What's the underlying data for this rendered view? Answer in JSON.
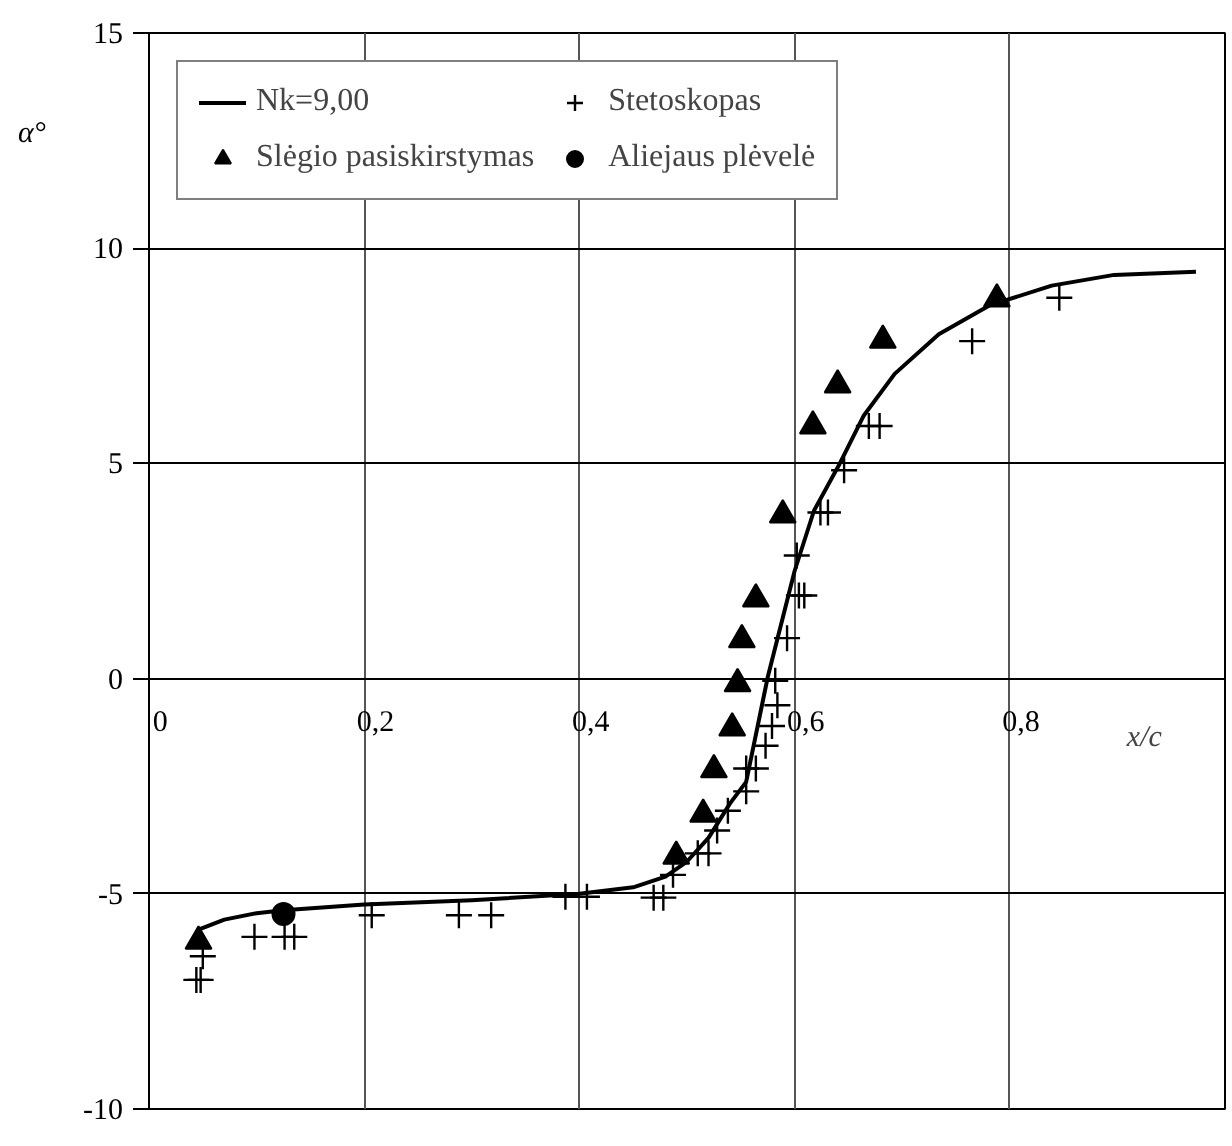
{
  "chart_data": {
    "type": "scatter",
    "xlabel": "x/c",
    "ylabel": "α°",
    "xlim": [
      0,
      1
    ],
    "ylim": [
      -10,
      15
    ],
    "xticks": [
      0,
      {
        "value": 0.2,
        "label": "0,2"
      },
      {
        "value": 0.4,
        "label": "0,4"
      },
      {
        "value": 0.6,
        "label": "0,6"
      },
      {
        "value": 0.8,
        "label": "0,8"
      }
    ],
    "yticks": [
      -10,
      -5,
      0,
      5,
      10,
      15
    ],
    "grid": true,
    "legend": "top left",
    "series": [
      {
        "name": "Nk=9,00",
        "type": "line",
        "color": "#000000",
        "marker": "none",
        "line_style": "solid",
        "x": [
          0.046,
          0.07,
          0.1,
          0.125,
          0.2,
          0.3,
          0.4,
          0.45,
          0.48,
          0.5,
          0.52,
          0.54,
          0.555,
          0.575,
          0.6,
          0.618,
          0.641,
          0.664,
          0.693,
          0.734,
          0.781,
          0.839,
          0.897,
          0.973
        ],
        "values": [
          -5.83,
          -5.6,
          -5.45,
          -5.38,
          -5.25,
          -5.15,
          -5.0,
          -4.85,
          -4.6,
          -4.25,
          -3.7,
          -2.9,
          -2.4,
          0.03,
          2.5,
          3.9,
          4.95,
          6.1,
          7.08,
          8.0,
          8.67,
          9.13,
          9.38,
          9.45
        ]
      },
      {
        "name": "Stetoskopas",
        "color": "#000000",
        "marker": "cross",
        "x": [
          0.05,
          0.044,
          0.048,
          0.098,
          0.126,
          0.135,
          0.207,
          0.288,
          0.318,
          0.387,
          0.407,
          0.469,
          0.478,
          0.487,
          0.51,
          0.52,
          0.528,
          0.538,
          0.555,
          0.555,
          0.564,
          0.573,
          0.579,
          0.584,
          0.582,
          0.593,
          0.604,
          0.609,
          0.602,
          0.624,
          0.631,
          0.646,
          0.669,
          0.679,
          0.765,
          0.846
        ],
        "values": [
          -6.45,
          -7.0,
          -7.0,
          -6.0,
          -6.0,
          -6.0,
          -5.5,
          -5.5,
          -5.5,
          -5.07,
          -5.07,
          -5.09,
          -5.09,
          -4.56,
          -4.06,
          -4.06,
          -3.53,
          -3.07,
          -2.62,
          -2.09,
          -2.09,
          -1.56,
          -1.1,
          -0.62,
          -0.05,
          0.94,
          1.93,
          1.93,
          2.86,
          3.86,
          3.86,
          4.84,
          5.87,
          5.87,
          7.84,
          8.85
        ]
      },
      {
        "name": "Slėgio pasiskirstymas",
        "color": "#000000",
        "marker": "triangle",
        "x": [
          0.046,
          0.49,
          0.515,
          0.525,
          0.542,
          0.547,
          0.551,
          0.564,
          0.589,
          0.617,
          0.64,
          0.682,
          0.788
        ],
        "values": [
          -6.1,
          -4.13,
          -3.15,
          -2.12,
          -1.15,
          -0.12,
          0.9,
          1.85,
          3.8,
          5.87,
          6.82,
          7.86,
          8.82
        ]
      },
      {
        "name": "Aliejaus plėvelė",
        "color": "#000000",
        "marker": "circle",
        "x": [
          0.125
        ],
        "values": [
          -5.47
        ]
      }
    ]
  }
}
